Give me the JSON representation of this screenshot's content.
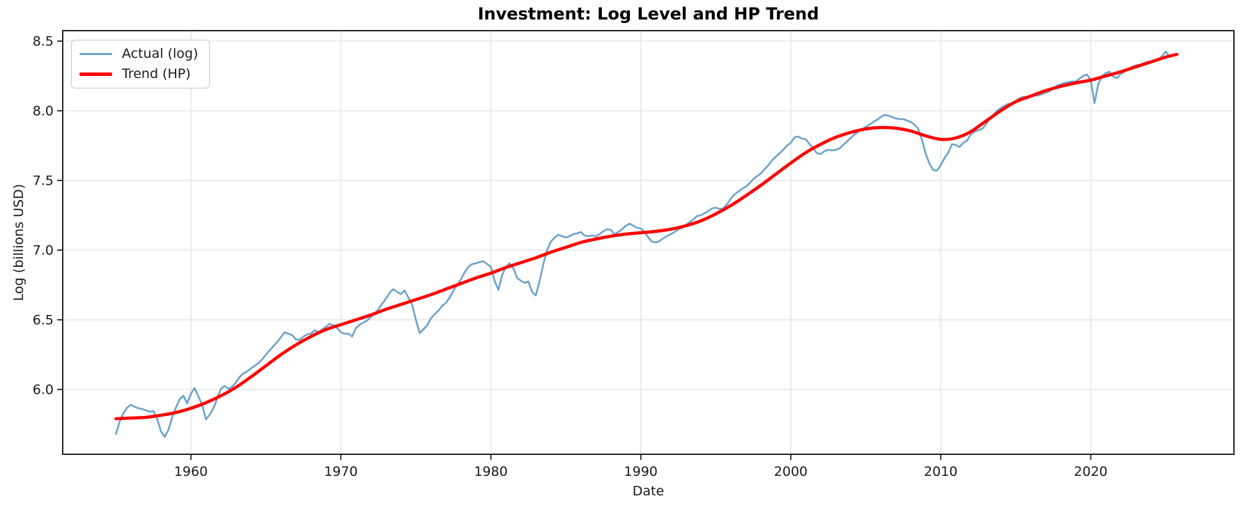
{
  "chart_data": {
    "type": "line",
    "title": "Investment: Log Level and HP Trend",
    "xlabel": "Date",
    "ylabel": "Log (billions USD)",
    "xlim": [
      1951.45,
      2029.55
    ],
    "ylim": [
      5.535,
      8.575
    ],
    "grid": true,
    "legend_position": "upper-left",
    "x_ticks": {
      "values": [
        1960,
        1970,
        1980,
        1990,
        2000,
        2010,
        2020
      ],
      "labels": [
        "1960",
        "1970",
        "1980",
        "1990",
        "2000",
        "2010",
        "2020"
      ]
    },
    "y_ticks": {
      "values": [
        6.0,
        6.5,
        7.0,
        7.5,
        8.0,
        8.5
      ],
      "labels": [
        "6.0",
        "6.5",
        "7.0",
        "7.5",
        "8.0",
        "8.5"
      ]
    },
    "legend": {
      "items": [
        {
          "label": "Actual (log)",
          "series": "actual"
        },
        {
          "label": "Trend (HP)",
          "series": "trend"
        }
      ]
    },
    "style": {
      "grid_color": "#e6e6e6",
      "spine_color": "#262626",
      "text_color": "#1a1a1a",
      "background": "#ffffff"
    },
    "series": [
      {
        "id": "actual",
        "name": "Actual (log)",
        "color": "#6FA2CB",
        "line_width": 2.6,
        "smooth": false,
        "x_start": 1955.0,
        "x_step": 0.25,
        "values": [
          5.68,
          5.77,
          5.83,
          5.87,
          5.89,
          5.875,
          5.865,
          5.86,
          5.85,
          5.84,
          5.845,
          5.79,
          5.7,
          5.66,
          5.71,
          5.8,
          5.87,
          5.93,
          5.955,
          5.9,
          5.97,
          6.01,
          5.95,
          5.89,
          5.785,
          5.82,
          5.865,
          5.935,
          6.005,
          6.025,
          6.005,
          6.02,
          6.05,
          6.09,
          6.115,
          6.13,
          6.15,
          6.17,
          6.19,
          6.215,
          6.25,
          6.28,
          6.31,
          6.34,
          6.375,
          6.41,
          6.4,
          6.39,
          6.36,
          6.355,
          6.38,
          6.395,
          6.4,
          6.425,
          6.41,
          6.43,
          6.45,
          6.47,
          6.46,
          6.44,
          6.41,
          6.4,
          6.4,
          6.38,
          6.44,
          6.465,
          6.48,
          6.495,
          6.52,
          6.545,
          6.575,
          6.615,
          6.65,
          6.695,
          6.72,
          6.7,
          6.685,
          6.71,
          6.66,
          6.61,
          6.5,
          6.405,
          6.43,
          6.46,
          6.51,
          6.54,
          6.565,
          6.6,
          6.62,
          6.66,
          6.71,
          6.75,
          6.79,
          6.84,
          6.88,
          6.9,
          6.905,
          6.915,
          6.92,
          6.9,
          6.88,
          6.78,
          6.715,
          6.82,
          6.88,
          6.905,
          6.87,
          6.8,
          6.78,
          6.765,
          6.775,
          6.7,
          6.675,
          6.78,
          6.9,
          7.0,
          7.06,
          7.09,
          7.11,
          7.1,
          7.09,
          7.1,
          7.115,
          7.12,
          7.13,
          7.105,
          7.1,
          7.105,
          7.1,
          7.115,
          7.135,
          7.15,
          7.145,
          7.115,
          7.13,
          7.15,
          7.175,
          7.19,
          7.175,
          7.16,
          7.155,
          7.13,
          7.09,
          7.06,
          7.055,
          7.065,
          7.085,
          7.1,
          7.115,
          7.13,
          7.15,
          7.16,
          7.18,
          7.2,
          7.22,
          7.245,
          7.25,
          7.265,
          7.28,
          7.3,
          7.305,
          7.295,
          7.3,
          7.33,
          7.37,
          7.4,
          7.42,
          7.44,
          7.455,
          7.48,
          7.51,
          7.53,
          7.55,
          7.58,
          7.61,
          7.645,
          7.67,
          7.695,
          7.72,
          7.75,
          7.77,
          7.81,
          7.815,
          7.8,
          7.795,
          7.76,
          7.73,
          7.695,
          7.69,
          7.71,
          7.72,
          7.715,
          7.72,
          7.73,
          7.755,
          7.78,
          7.805,
          7.83,
          7.85,
          7.865,
          7.885,
          7.9,
          7.92,
          7.935,
          7.955,
          7.97,
          7.965,
          7.955,
          7.945,
          7.94,
          7.94,
          7.93,
          7.92,
          7.9,
          7.87,
          7.79,
          7.69,
          7.62,
          7.575,
          7.57,
          7.61,
          7.66,
          7.7,
          7.76,
          7.755,
          7.74,
          7.77,
          7.785,
          7.83,
          7.85,
          7.86,
          7.87,
          7.9,
          7.94,
          7.97,
          8.0,
          8.02,
          8.035,
          8.05,
          8.05,
          8.07,
          8.09,
          8.1,
          8.1,
          8.1,
          8.11,
          8.11,
          8.12,
          8.13,
          8.14,
          8.16,
          8.18,
          8.19,
          8.2,
          8.205,
          8.21,
          8.21,
          8.23,
          8.25,
          8.26,
          8.22,
          8.055,
          8.19,
          8.25,
          8.27,
          8.28,
          8.245,
          8.235,
          8.265,
          8.28,
          8.3,
          8.315,
          8.325,
          8.33,
          8.34,
          8.35,
          8.355,
          8.36,
          8.37,
          8.39,
          8.425,
          8.39,
          8.395,
          8.405
        ]
      },
      {
        "id": "trend",
        "name": "Trend (HP)",
        "color": "#FF0000",
        "line_width": 4.5,
        "smooth": true,
        "x_start": 1955.0,
        "x_step": 1.0,
        "x_end": 2025.75,
        "values": [
          5.79,
          5.795,
          5.8,
          5.815,
          5.835,
          5.865,
          5.905,
          5.955,
          6.015,
          6.09,
          6.17,
          6.25,
          6.32,
          6.38,
          6.43,
          6.465,
          6.5,
          6.535,
          6.575,
          6.61,
          6.645,
          6.68,
          6.72,
          6.76,
          6.8,
          6.835,
          6.875,
          6.91,
          6.945,
          6.985,
          7.02,
          7.055,
          7.08,
          7.1,
          7.115,
          7.125,
          7.135,
          7.15,
          7.175,
          7.21,
          7.26,
          7.32,
          7.39,
          7.465,
          7.545,
          7.625,
          7.7,
          7.76,
          7.81,
          7.845,
          7.87,
          7.88,
          7.875,
          7.855,
          7.82,
          7.795,
          7.805,
          7.85,
          7.925,
          8.0,
          8.065,
          8.105,
          8.145,
          8.175,
          8.2,
          8.22,
          8.25,
          8.28,
          8.315,
          8.35,
          8.385,
          8.405
        ]
      }
    ]
  }
}
